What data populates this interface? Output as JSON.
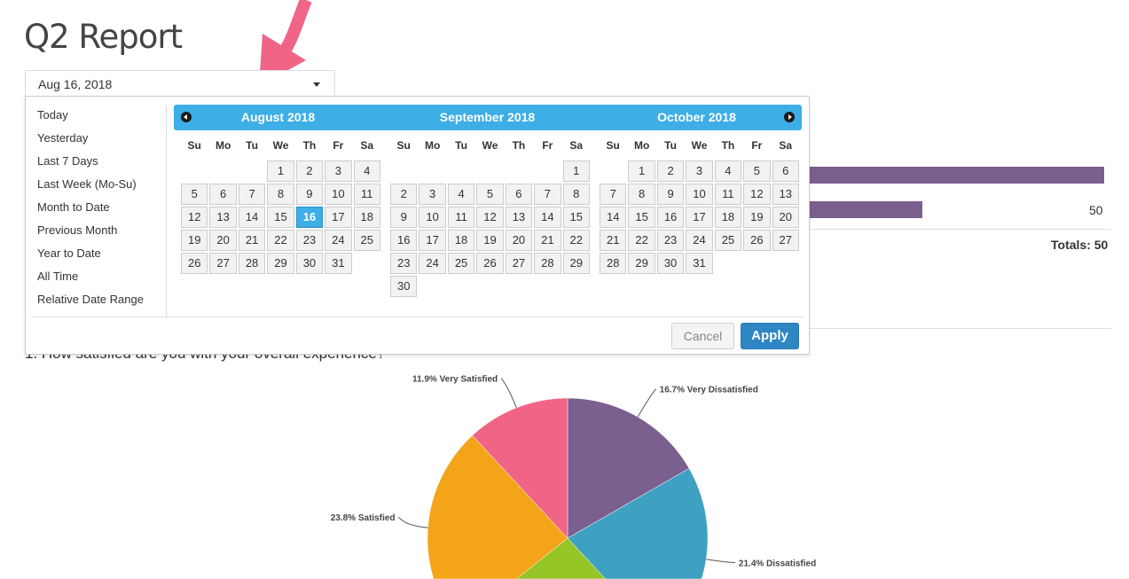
{
  "page": {
    "title": "Q2 Report",
    "question": "1. How satisfied are you with your overall experience?"
  },
  "date_picker": {
    "value": "Aug 16, 2018",
    "ranges": [
      "Today",
      "Yesterday",
      "Last 7 Days",
      "Last Week (Mo-Su)",
      "Month to Date",
      "Previous Month",
      "Year to Date",
      "All Time",
      "Relative Date Range"
    ],
    "weekdays": [
      "Su",
      "Mo",
      "Tu",
      "We",
      "Th",
      "Fr",
      "Sa"
    ],
    "selected": {
      "month": 0,
      "day": 16
    },
    "months": [
      {
        "name": "August 2018",
        "weeks": [
          [
            null,
            null,
            null,
            1,
            2,
            3,
            4
          ],
          [
            5,
            6,
            7,
            8,
            9,
            10,
            11
          ],
          [
            12,
            13,
            14,
            15,
            16,
            17,
            18
          ],
          [
            19,
            20,
            21,
            22,
            23,
            24,
            25
          ],
          [
            26,
            27,
            28,
            29,
            30,
            31,
            null
          ]
        ]
      },
      {
        "name": "September 2018",
        "weeks": [
          [
            null,
            null,
            null,
            null,
            null,
            null,
            1
          ],
          [
            2,
            3,
            4,
            5,
            6,
            7,
            8
          ],
          [
            9,
            10,
            11,
            12,
            13,
            14,
            15
          ],
          [
            16,
            17,
            18,
            19,
            20,
            21,
            22
          ],
          [
            23,
            24,
            25,
            26,
            27,
            28,
            29
          ],
          [
            30,
            null,
            null,
            null,
            null,
            null,
            null
          ]
        ]
      },
      {
        "name": "October 2018",
        "weeks": [
          [
            null,
            1,
            2,
            3,
            4,
            5,
            6
          ],
          [
            7,
            8,
            9,
            10,
            11,
            12,
            13
          ],
          [
            14,
            15,
            16,
            17,
            18,
            19,
            20
          ],
          [
            21,
            22,
            23,
            24,
            25,
            26,
            27
          ],
          [
            28,
            29,
            30,
            31,
            null,
            null,
            null
          ]
        ]
      }
    ],
    "cancel_label": "Cancel",
    "apply_label": "Apply",
    "accent": "#3daee6"
  },
  "background_table": {
    "row_value": "50",
    "totals": "Totals: 50",
    "bar_color": "#7b5f8e"
  },
  "chart_data": {
    "type": "pie",
    "slices": [
      {
        "label": "16.7% Very Dissatisfied",
        "value": 16.7,
        "color": "#7b5f8e"
      },
      {
        "label": "21.4% Dissatisfied",
        "value": 21.4,
        "color": "#3fa1c1"
      },
      {
        "label": "",
        "value": 26.2,
        "color": "#95c526"
      },
      {
        "label": "23.8% Satisfied",
        "value": 23.8,
        "color": "#f4a418"
      },
      {
        "label": "11.9% Very Satisfied",
        "value": 11.9,
        "color": "#f06586"
      }
    ]
  }
}
